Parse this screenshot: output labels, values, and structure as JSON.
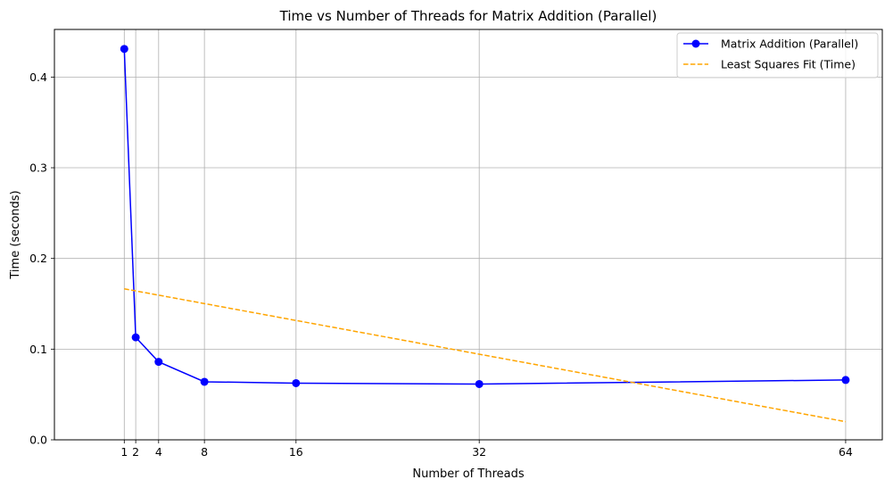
{
  "chart_data": {
    "type": "line",
    "title": "Time vs Number of Threads for Matrix Addition (Parallel)",
    "xlabel": "Number of Threads",
    "ylabel": "Time (seconds)",
    "x": [
      1,
      2,
      4,
      8,
      16,
      32,
      64
    ],
    "x_ticks": [
      1,
      2,
      4,
      8,
      16,
      32,
      64
    ],
    "x_tick_labels": [
      "1",
      "2",
      "4",
      "8",
      "16",
      "32",
      "64"
    ],
    "y_ticks": [
      0.0,
      0.1,
      0.2,
      0.3,
      0.4
    ],
    "y_tick_labels": [
      "0.0",
      "0.1",
      "0.2",
      "0.3",
      "0.4"
    ],
    "xlim": [
      -5.1,
      67.2
    ],
    "ylim": [
      0,
      0.4525
    ],
    "grid": true,
    "legend_position": "top-right",
    "series": [
      {
        "name": "Matrix Addition (Parallel)",
        "style": "solid-with-markers",
        "color": "#0000ff",
        "x": [
          1,
          2,
          4,
          8,
          16,
          32,
          64
        ],
        "values": [
          0.431,
          0.113,
          0.086,
          0.064,
          0.0625,
          0.0615,
          0.066
        ]
      },
      {
        "name": "Least Squares Fit (Time)",
        "style": "dashed",
        "color": "#ffa500",
        "x": [
          1,
          64
        ],
        "values": [
          0.1665,
          0.02
        ]
      }
    ]
  }
}
